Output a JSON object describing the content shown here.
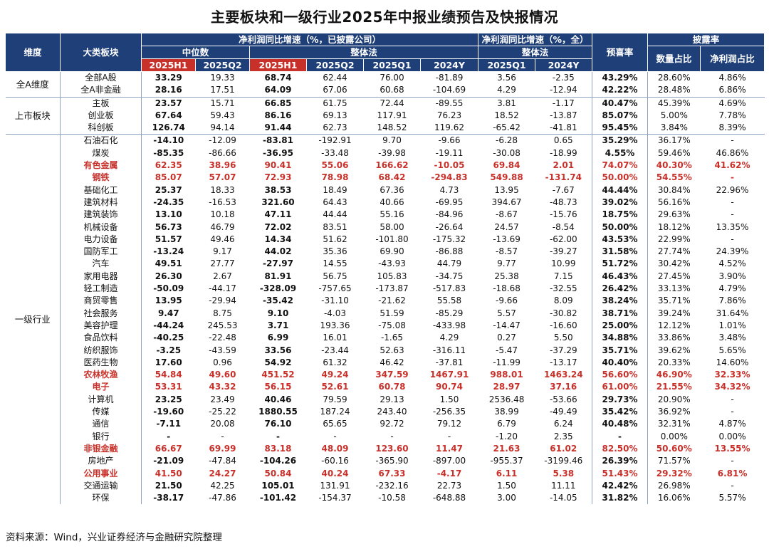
{
  "title": "主要板块和一级行业2025年中报业绩预告及快报情况",
  "header": {
    "dim": "维度",
    "category": "大类板块",
    "disclosed_group": "净利润同比增速（%，已披露公司）",
    "all_group": "净利润同比增速（%，全）",
    "median": "中位数",
    "overall_a": "整体法",
    "overall_b": "整体法",
    "forecast_rate": "预喜率",
    "disclosure_rate": "披露率",
    "h1_a": "2025H1",
    "q2_a": "2025Q2",
    "h1_b": "2025H1",
    "q2_b": "2025Q2",
    "q1_b": "2025Q1",
    "y24_b": "2024Y",
    "q1_c": "2025Q1",
    "y24_c": "2024Y",
    "count_share": "数量占比",
    "profit_share": "净利润占比"
  },
  "groups": [
    {
      "name": "全A维度",
      "rows": [
        {
          "name": "全部A股",
          "hl": false,
          "vals": [
            "33.29",
            "19.33",
            "68.74",
            "62.44",
            "76.00",
            "-81.89",
            "3.56",
            "-2.35",
            "43.29%",
            "28.60%",
            "4.86%"
          ]
        },
        {
          "name": "全A非金融",
          "hl": false,
          "vals": [
            "28.16",
            "17.51",
            "64.09",
            "67.06",
            "60.68",
            "-104.69",
            "4.29",
            "-12.94",
            "42.22%",
            "28.48%",
            "6.86%"
          ]
        }
      ]
    },
    {
      "name": "上市板块",
      "rows": [
        {
          "name": "主板",
          "hl": false,
          "vals": [
            "23.57",
            "15.71",
            "66.85",
            "61.75",
            "72.44",
            "-89.55",
            "3.81",
            "-1.17",
            "40.47%",
            "45.39%",
            "4.69%"
          ]
        },
        {
          "name": "创业板",
          "hl": false,
          "vals": [
            "67.64",
            "59.43",
            "86.16",
            "69.13",
            "117.91",
            "76.23",
            "18.52",
            "-13.87",
            "85.07%",
            "5.00%",
            "7.78%"
          ]
        },
        {
          "name": "科创板",
          "hl": false,
          "vals": [
            "126.74",
            "94.14",
            "91.44",
            "62.73",
            "148.52",
            "119.62",
            "-65.42",
            "-41.81",
            "95.45%",
            "3.84%",
            "8.39%"
          ]
        }
      ]
    },
    {
      "name": "一级行业",
      "rows": [
        {
          "name": "石油石化",
          "hl": false,
          "vals": [
            "-14.10",
            "-12.09",
            "-83.81",
            "-192.91",
            "9.70",
            "-9.66",
            "-6.28",
            "0.65",
            "35.29%",
            "36.17%",
            "-"
          ]
        },
        {
          "name": "煤炭",
          "hl": false,
          "vals": [
            "-85.35",
            "-86.66",
            "-36.95",
            "-33.48",
            "-39.98",
            "-19.11",
            "-30.08",
            "-18.99",
            "4.55%",
            "59.46%",
            "46.86%"
          ]
        },
        {
          "name": "有色金属",
          "hl": true,
          "vals": [
            "62.35",
            "38.96",
            "90.41",
            "55.06",
            "166.62",
            "-10.05",
            "69.84",
            "2.01",
            "74.07%",
            "40.30%",
            "41.62%"
          ]
        },
        {
          "name": "钢铁",
          "hl": true,
          "vals": [
            "85.07",
            "57.07",
            "72.93",
            "78.98",
            "68.42",
            "-294.83",
            "549.88",
            "-131.74",
            "50.00%",
            "54.55%",
            "-"
          ]
        },
        {
          "name": "基础化工",
          "hl": false,
          "vals": [
            "25.37",
            "18.33",
            "38.53",
            "18.49",
            "67.36",
            "4.73",
            "13.95",
            "-7.67",
            "44.44%",
            "30.84%",
            "22.96%"
          ]
        },
        {
          "name": "建筑材料",
          "hl": false,
          "vals": [
            "-24.35",
            "-16.53",
            "321.60",
            "64.43",
            "40.66",
            "-69.95",
            "394.67",
            "-48.73",
            "39.02%",
            "56.16%",
            "-"
          ]
        },
        {
          "name": "建筑装饰",
          "hl": false,
          "vals": [
            "13.10",
            "10.18",
            "47.11",
            "44.44",
            "55.16",
            "-84.96",
            "-8.67",
            "-15.76",
            "18.75%",
            "29.63%",
            "-"
          ]
        },
        {
          "name": "机械设备",
          "hl": false,
          "vals": [
            "56.73",
            "46.79",
            "72.02",
            "83.51",
            "58.00",
            "-26.64",
            "24.57",
            "-8.54",
            "50.00%",
            "18.12%",
            "13.35%"
          ]
        },
        {
          "name": "电力设备",
          "hl": false,
          "vals": [
            "51.57",
            "49.46",
            "14.34",
            "51.62",
            "-101.80",
            "-175.32",
            "-13.69",
            "-62.00",
            "43.53%",
            "22.99%",
            "-"
          ]
        },
        {
          "name": "国防军工",
          "hl": false,
          "vals": [
            "-13.24",
            "9.17",
            "44.02",
            "35.36",
            "69.90",
            "-86.88",
            "-8.57",
            "-39.27",
            "31.58%",
            "27.74%",
            "24.39%"
          ]
        },
        {
          "name": "汽车",
          "hl": false,
          "vals": [
            "49.51",
            "27.77",
            "-27.97",
            "14.55",
            "-43.93",
            "44.79",
            "9.77",
            "10.99",
            "51.72%",
            "30.42%",
            "4.52%"
          ]
        },
        {
          "name": "家用电器",
          "hl": false,
          "vals": [
            "26.30",
            "2.67",
            "81.91",
            "56.75",
            "105.83",
            "-34.75",
            "25.38",
            "7.15",
            "46.43%",
            "27.45%",
            "3.90%"
          ]
        },
        {
          "name": "轻工制造",
          "hl": false,
          "vals": [
            "-50.09",
            "-44.17",
            "-328.09",
            "-757.65",
            "-173.87",
            "-517.83",
            "-18.68",
            "-32.55",
            "26.42%",
            "33.13%",
            "4.79%"
          ]
        },
        {
          "name": "商贸零售",
          "hl": false,
          "vals": [
            "13.95",
            "-29.94",
            "-35.42",
            "-31.10",
            "-21.62",
            "55.58",
            "-9.66",
            "8.09",
            "38.24%",
            "35.71%",
            "7.86%"
          ]
        },
        {
          "name": "社会服务",
          "hl": false,
          "vals": [
            "9.47",
            "8.75",
            "9.10",
            "-4.03",
            "51.59",
            "-85.29",
            "5.57",
            "-30.82",
            "38.71%",
            "39.24%",
            "31.64%"
          ]
        },
        {
          "name": "美容护理",
          "hl": false,
          "vals": [
            "-44.24",
            "245.53",
            "3.71",
            "193.36",
            "-75.08",
            "-433.98",
            "-14.47",
            "-16.60",
            "25.00%",
            "12.12%",
            "1.01%"
          ]
        },
        {
          "name": "食品饮料",
          "hl": false,
          "vals": [
            "-40.25",
            "-22.48",
            "6.99",
            "16.01",
            "-1.65",
            "4.29",
            "0.27",
            "5.50",
            "34.88%",
            "33.86%",
            "3.48%"
          ]
        },
        {
          "name": "纺织服饰",
          "hl": false,
          "vals": [
            "-3.25",
            "-43.59",
            "33.56",
            "-23.44",
            "52.63",
            "-316.11",
            "-5.47",
            "-37.29",
            "35.71%",
            "39.62%",
            "5.65%"
          ]
        },
        {
          "name": "医药生物",
          "hl": false,
          "vals": [
            "17.60",
            "0.96",
            "54.92",
            "61.32",
            "46.42",
            "-37.81",
            "-11.99",
            "-13.17",
            "40.40%",
            "20.33%",
            "14.60%"
          ]
        },
        {
          "name": "农林牧渔",
          "hl": true,
          "vals": [
            "54.84",
            "49.60",
            "451.52",
            "49.24",
            "347.59",
            "1467.91",
            "988.01",
            "1463.24",
            "56.60%",
            "46.90%",
            "32.33%"
          ]
        },
        {
          "name": "电子",
          "hl": true,
          "vals": [
            "53.31",
            "43.32",
            "56.15",
            "52.61",
            "60.78",
            "90.74",
            "28.97",
            "37.16",
            "61.00%",
            "21.55%",
            "34.32%"
          ]
        },
        {
          "name": "计算机",
          "hl": false,
          "vals": [
            "23.25",
            "23.49",
            "40.46",
            "79.59",
            "29.13",
            "1.50",
            "2536.48",
            "-53.66",
            "29.73%",
            "20.90%",
            "-"
          ]
        },
        {
          "name": "传媒",
          "hl": false,
          "vals": [
            "-19.60",
            "-25.22",
            "1880.55",
            "187.24",
            "243.40",
            "-256.35",
            "38.99",
            "-49.49",
            "35.42%",
            "36.92%",
            "-"
          ]
        },
        {
          "name": "通信",
          "hl": false,
          "vals": [
            "-7.11",
            "20.08",
            "76.10",
            "65.65",
            "92.72",
            "79.12",
            "6.79",
            "6.24",
            "40.48%",
            "32.31%",
            "4.87%"
          ]
        },
        {
          "name": "银行",
          "hl": false,
          "vals": [
            "-",
            "-",
            "-",
            "-",
            "-",
            "-",
            "-1.20",
            "2.35",
            "-",
            "0.00%",
            "0.00%"
          ]
        },
        {
          "name": "非银金融",
          "hl": true,
          "vals": [
            "66.67",
            "69.99",
            "83.18",
            "48.09",
            "123.60",
            "11.47",
            "21.63",
            "61.02",
            "82.50%",
            "50.60%",
            "13.55%"
          ]
        },
        {
          "name": "房地产",
          "hl": false,
          "vals": [
            "-21.09",
            "-47.84",
            "-104.26",
            "-60.16",
            "-365.90",
            "-897.00",
            "-955.37",
            "-3199.46",
            "26.39%",
            "71.57%",
            "-"
          ]
        },
        {
          "name": "公用事业",
          "hl": true,
          "vals": [
            "41.50",
            "24.27",
            "50.84",
            "40.24",
            "67.33",
            "-4.17",
            "6.11",
            "5.38",
            "51.43%",
            "29.32%",
            "6.81%"
          ]
        },
        {
          "name": "交通运输",
          "hl": false,
          "vals": [
            "21.50",
            "42.25",
            "105.01",
            "131.91",
            "-232.16",
            "22.73",
            "1.50",
            "11.11",
            "42.42%",
            "26.98%",
            "-"
          ]
        },
        {
          "name": "环保",
          "hl": false,
          "vals": [
            "-38.17",
            "-47.86",
            "-101.42",
            "-154.37",
            "-10.58",
            "-648.88",
            "3.00",
            "-14.05",
            "31.82%",
            "16.06%",
            "5.57%"
          ]
        }
      ]
    }
  ],
  "footer": "资料来源：Wind，兴业证券经济与金融研究院整理"
}
